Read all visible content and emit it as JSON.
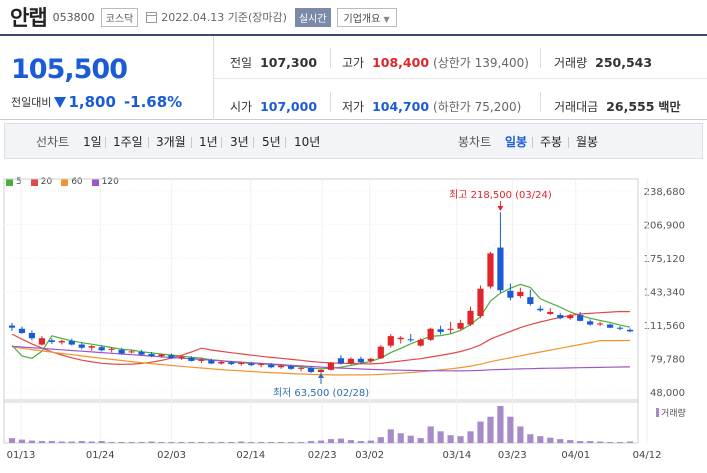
{
  "header": {
    "name": "안랩",
    "code": "053800",
    "market": "코스닥",
    "date_text": "2022.04.13  기준(장마감)",
    "realtime_label": "실시간",
    "company_label": "기업개요"
  },
  "summary": {
    "price": "105,500",
    "change_label": "전일대비",
    "change_value": "1,800",
    "change_pct": "-1.68%",
    "prev_close": {
      "label": "전일",
      "value": "107,300"
    },
    "open": {
      "label": "시가",
      "value": "107,000"
    },
    "high": {
      "label": "고가",
      "value": "108,400",
      "sub": "(상한가 139,400)"
    },
    "low": {
      "label": "저가",
      "value": "104,700",
      "sub": "(하한가 75,200)"
    },
    "volume": {
      "label": "거래량",
      "value": "250,543"
    },
    "amount": {
      "label": "거래대금",
      "value": "26,555",
      "unit": "백만"
    }
  },
  "toolbar": {
    "line_chart": "선차트",
    "line_periods": [
      "1일",
      "1주일",
      "3개월",
      "1년",
      "3년",
      "5년",
      "10년"
    ],
    "candle_chart": "봉차트",
    "candle_periods": [
      "일봉",
      "주봉",
      "월봉"
    ],
    "active_period": "일봉"
  },
  "colors": {
    "up": "#e0252b",
    "down": "#1a5bd6",
    "ma5": "#4caf3a",
    "ma20": "#e24a4a",
    "ma60": "#f0952d",
    "ma120": "#9c58c9",
    "volume": "#a78bc8"
  },
  "chart_data": {
    "type": "candlestick",
    "legend": [
      {
        "name": "5",
        "color": "#4caf3a"
      },
      {
        "name": "20",
        "color": "#e24a4a"
      },
      {
        "name": "60",
        "color": "#f0952d"
      },
      {
        "name": "120",
        "color": "#9c58c9"
      }
    ],
    "y_ticks": [
      "238,680",
      "206,900",
      "175,120",
      "143,340",
      "111,560",
      "79,780",
      "48,000"
    ],
    "y_range": [
      48000,
      238680
    ],
    "x_ticks": [
      "01/13",
      "01/24",
      "02/03",
      "02/14",
      "02/23",
      "03/02",
      "03/14",
      "03/23",
      "04/01",
      "04/12"
    ],
    "volume_label": "거래량",
    "annotations": {
      "high": "최고 218,500 (03/24)",
      "low": "최저 63,500 (02/28)"
    },
    "candles": [
      [
        111000,
        113500,
        106000,
        109000
      ],
      [
        108000,
        110000,
        103000,
        104000
      ],
      [
        104000,
        106500,
        97000,
        99000
      ],
      [
        93000,
        101000,
        92000,
        99000
      ],
      [
        97000,
        99000,
        93500,
        95500
      ],
      [
        95000,
        97500,
        93000,
        96500
      ],
      [
        96500,
        98500,
        92000,
        93000
      ],
      [
        93000,
        95000,
        88500,
        90000
      ],
      [
        90000,
        92500,
        87000,
        91500
      ],
      [
        90500,
        92000,
        86500,
        87500
      ],
      [
        88000,
        90000,
        85500,
        89000
      ],
      [
        88000,
        90000,
        83500,
        84500
      ],
      [
        86000,
        88000,
        84500,
        86500
      ],
      [
        86000,
        88000,
        82500,
        83500
      ],
      [
        84000,
        86000,
        81000,
        82000
      ],
      [
        82000,
        84500,
        80500,
        83500
      ],
      [
        83000,
        84500,
        79500,
        80000
      ],
      [
        80000,
        82500,
        78500,
        81500
      ],
      [
        80500,
        82000,
        77000,
        77500
      ],
      [
        77500,
        80000,
        75500,
        78500
      ],
      [
        78000,
        79500,
        74500,
        75000
      ],
      [
        75000,
        77500,
        74000,
        76500
      ],
      [
        76000,
        77500,
        73500,
        74500
      ],
      [
        74500,
        76500,
        73000,
        75500
      ],
      [
        75000,
        76500,
        72500,
        73500
      ],
      [
        73500,
        75500,
        71500,
        74500
      ],
      [
        74000,
        75500,
        70500,
        71500
      ],
      [
        71500,
        74000,
        70000,
        73000
      ],
      [
        72500,
        74000,
        69000,
        70000
      ],
      [
        70000,
        72000,
        67500,
        71000
      ],
      [
        71000,
        72500,
        66000,
        67000
      ],
      [
        67000,
        69500,
        63500,
        69000
      ],
      [
        69000,
        76500,
        68500,
        75500
      ],
      [
        80000,
        83000,
        74000,
        75000
      ],
      [
        75000,
        81000,
        74000,
        79500
      ],
      [
        79500,
        81500,
        75000,
        76000
      ],
      [
        77500,
        80500,
        75500,
        79500
      ],
      [
        80000,
        92500,
        79500,
        91000
      ],
      [
        92000,
        103000,
        90000,
        101000
      ],
      [
        98000,
        101000,
        94000,
        99500
      ],
      [
        98000,
        103000,
        95500,
        97500
      ],
      [
        92000,
        99000,
        91000,
        97500
      ],
      [
        97500,
        109000,
        96500,
        108000
      ],
      [
        107500,
        111000,
        102500,
        105000
      ],
      [
        107000,
        114500,
        103500,
        108000
      ],
      [
        108000,
        116500,
        107000,
        113500
      ],
      [
        112000,
        129000,
        110500,
        125000
      ],
      [
        120000,
        149000,
        118000,
        146000
      ],
      [
        148000,
        181000,
        146000,
        179500
      ],
      [
        185000,
        218500,
        142000,
        144500
      ],
      [
        144000,
        151000,
        135000,
        137500
      ],
      [
        139000,
        147000,
        137000,
        143000
      ],
      [
        138000,
        145000,
        130000,
        131500
      ],
      [
        127000,
        130000,
        124000,
        125500
      ],
      [
        122000,
        127500,
        121000,
        124000
      ],
      [
        121000,
        123000,
        117000,
        118000
      ],
      [
        118000,
        122000,
        116500,
        120500
      ],
      [
        121000,
        124000,
        115000,
        115500
      ],
      [
        115000,
        117000,
        111000,
        112000
      ],
      [
        112500,
        114500,
        110500,
        113000
      ],
      [
        112000,
        113000,
        108500,
        109000
      ],
      [
        109000,
        110500,
        106500,
        108000
      ],
      [
        107000,
        108400,
        104700,
        105500
      ]
    ],
    "volumes": [
      5,
      3.5,
      2.5,
      2,
      2,
      1.5,
      1.5,
      2,
      1.5,
      2,
      1,
      1,
      1,
      1,
      1.5,
      1,
      1,
      1,
      1,
      1,
      1,
      1,
      1,
      1.5,
      1,
      1,
      1,
      1,
      1,
      1,
      2,
      2.5,
      4,
      4.5,
      3,
      2,
      2.5,
      6,
      14,
      10,
      7.5,
      5,
      17,
      12,
      8,
      7,
      12,
      22,
      27,
      38,
      27,
      17,
      9,
      7,
      5.5,
      4,
      3,
      2,
      2,
      1.5,
      1,
      1,
      1.5
    ]
  }
}
